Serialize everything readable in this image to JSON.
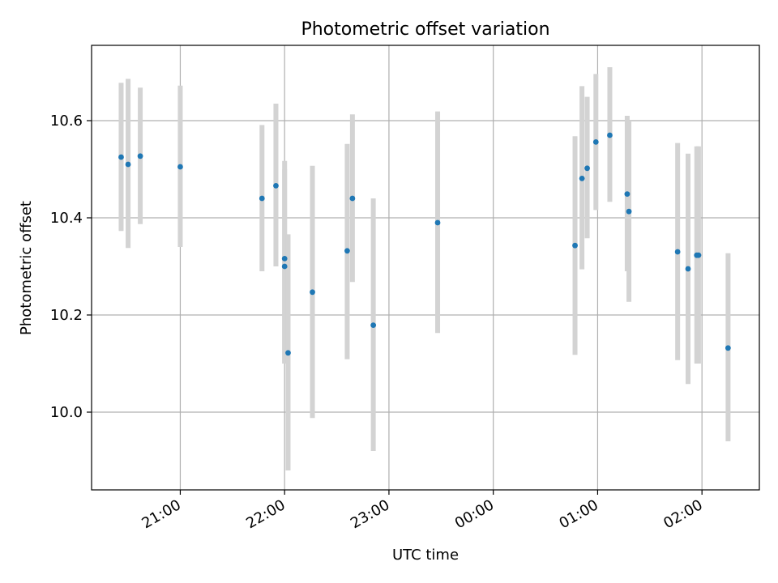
{
  "chart_data": {
    "type": "scatter",
    "title": "Photometric offset variation",
    "xlabel": "UTC time",
    "ylabel": "Photometric offset",
    "x_axis": "time (UTC, HH:MM); 20:00–23:59 on the first night, 00:00–02:59 after midnight",
    "x_ticks": [
      "21:00",
      "22:00",
      "23:00",
      "00:00",
      "01:00",
      "02:00"
    ],
    "y_ticks": [
      10.0,
      10.2,
      10.4,
      10.6
    ],
    "xlim": [
      "20:09",
      "02:33"
    ],
    "ylim": [
      9.84,
      10.755
    ],
    "grid": true,
    "legend": "none",
    "colors": {
      "points": "#1f77b4",
      "errorbars": "#d3d3d3",
      "grid": "#b0b0b0"
    },
    "points": [
      {
        "t": "20:26",
        "y": 10.525,
        "lo": 10.373,
        "hi": 10.678
      },
      {
        "t": "20:30",
        "y": 10.51,
        "lo": 10.338,
        "hi": 10.686
      },
      {
        "t": "20:37",
        "y": 10.527,
        "lo": 10.387,
        "hi": 10.668
      },
      {
        "t": "21:00",
        "y": 10.505,
        "lo": 10.34,
        "hi": 10.672
      },
      {
        "t": "21:47",
        "y": 10.44,
        "lo": 10.29,
        "hi": 10.591
      },
      {
        "t": "21:55",
        "y": 10.466,
        "lo": 10.3,
        "hi": 10.635
      },
      {
        "t": "22:00",
        "y": 10.316,
        "lo": 10.1,
        "hi": 10.517
      },
      {
        "t": "22:00",
        "y": 10.3,
        "lo": 10.1,
        "hi": 10.5
      },
      {
        "t": "22:02",
        "y": 10.122,
        "lo": 9.88,
        "hi": 10.366
      },
      {
        "t": "22:16",
        "y": 10.247,
        "lo": 9.988,
        "hi": 10.507
      },
      {
        "t": "22:36",
        "y": 10.332,
        "lo": 10.109,
        "hi": 10.552
      },
      {
        "t": "22:39",
        "y": 10.44,
        "lo": 10.268,
        "hi": 10.613
      },
      {
        "t": "22:51",
        "y": 10.179,
        "lo": 9.92,
        "hi": 10.44
      },
      {
        "t": "23:28",
        "y": 10.39,
        "lo": 10.163,
        "hi": 10.619
      },
      {
        "t": "00:47",
        "y": 10.343,
        "lo": 10.118,
        "hi": 10.568
      },
      {
        "t": "00:51",
        "y": 10.481,
        "lo": 10.294,
        "hi": 10.671
      },
      {
        "t": "00:54",
        "y": 10.502,
        "lo": 10.358,
        "hi": 10.649
      },
      {
        "t": "00:59",
        "y": 10.556,
        "lo": 10.416,
        "hi": 10.696
      },
      {
        "t": "01:07",
        "y": 10.57,
        "lo": 10.433,
        "hi": 10.71
      },
      {
        "t": "01:17",
        "y": 10.449,
        "lo": 10.29,
        "hi": 10.61
      },
      {
        "t": "01:18",
        "y": 10.413,
        "lo": 10.227,
        "hi": 10.6
      },
      {
        "t": "01:46",
        "y": 10.33,
        "lo": 10.107,
        "hi": 10.554
      },
      {
        "t": "01:52",
        "y": 10.295,
        "lo": 10.058,
        "hi": 10.532
      },
      {
        "t": "01:57",
        "y": 10.323,
        "lo": 10.1,
        "hi": 10.547
      },
      {
        "t": "01:58",
        "y": 10.323,
        "lo": 10.1,
        "hi": 10.547
      },
      {
        "t": "02:15",
        "y": 10.132,
        "lo": 9.94,
        "hi": 10.327
      }
    ]
  }
}
